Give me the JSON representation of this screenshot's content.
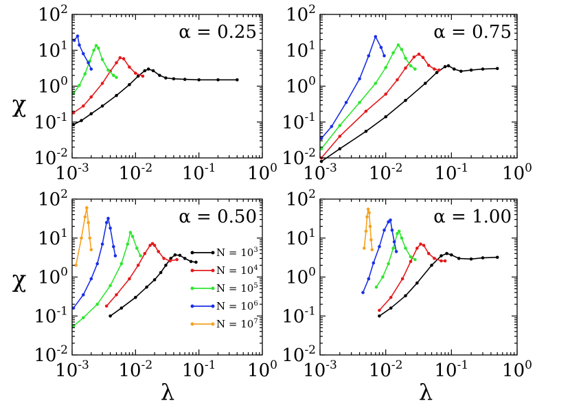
{
  "colors": {
    "black": "#000000",
    "red": "#e4191b",
    "green": "#2ee62e",
    "blue": "#1a2fe6",
    "orange": "#f5a21f"
  },
  "axis": {
    "xlabel": "λ",
    "ylabel": "χ",
    "x_ticks": [
      {
        "base": "10",
        "exp": "-3",
        "value": 0.001
      },
      {
        "base": "10",
        "exp": "-2",
        "value": 0.01
      },
      {
        "base": "10",
        "exp": "-1",
        "value": 0.1
      },
      {
        "base": "10",
        "exp": "0",
        "value": 1
      }
    ],
    "y_ticks": [
      {
        "base": "10",
        "exp": "2",
        "value": 100
      },
      {
        "base": "10",
        "exp": "1",
        "value": 10
      },
      {
        "base": "10",
        "exp": "0",
        "value": 1
      },
      {
        "base": "10",
        "exp": "-1",
        "value": 0.1
      },
      {
        "base": "10",
        "exp": "-2",
        "value": 0.01
      }
    ]
  },
  "chart_data": [
    {
      "type": "line",
      "title": "α = 0.25",
      "xscale": "log",
      "yscale": "log",
      "xlim": [
        0.001,
        1
      ],
      "ylim": [
        0.01,
        100
      ],
      "series": [
        {
          "name": "N = 10^3",
          "color": "black",
          "points": [
            [
              0.00105,
              0.085
            ],
            [
              0.0014,
              0.11
            ],
            [
              0.002,
              0.17
            ],
            [
              0.003,
              0.28
            ],
            [
              0.005,
              0.55
            ],
            [
              0.008,
              1.1
            ],
            [
              0.011,
              1.9
            ],
            [
              0.014,
              2.7
            ],
            [
              0.016,
              3.0
            ],
            [
              0.019,
              2.7
            ],
            [
              0.024,
              2.0
            ],
            [
              0.03,
              1.7
            ],
            [
              0.04,
              1.6
            ],
            [
              0.06,
              1.55
            ],
            [
              0.1,
              1.5
            ],
            [
              0.2,
              1.5
            ],
            [
              0.4,
              1.5
            ]
          ]
        },
        {
          "name": "N = 10^4",
          "color": "red",
          "points": [
            [
              0.00105,
              0.18
            ],
            [
              0.0015,
              0.28
            ],
            [
              0.002,
              0.5
            ],
            [
              0.003,
              1.2
            ],
            [
              0.004,
              2.6
            ],
            [
              0.005,
              4.5
            ],
            [
              0.0057,
              6.2
            ],
            [
              0.0065,
              5.8
            ],
            [
              0.008,
              3.4
            ],
            [
              0.01,
              2.3
            ],
            [
              0.013,
              1.9
            ]
          ]
        },
        {
          "name": "N = 10^5",
          "color": "green",
          "points": [
            [
              0.00105,
              0.62
            ],
            [
              0.0013,
              1.05
            ],
            [
              0.0016,
              2.2
            ],
            [
              0.0019,
              5.0
            ],
            [
              0.0022,
              10.0
            ],
            [
              0.0024,
              13.5
            ],
            [
              0.0026,
              11.5
            ],
            [
              0.003,
              5.5
            ],
            [
              0.0037,
              2.8
            ],
            [
              0.0045,
              2.0
            ],
            [
              0.005,
              1.75
            ]
          ]
        },
        {
          "name": "N = 10^6",
          "color": "blue",
          "points": [
            [
              0.00108,
              19.0
            ],
            [
              0.00122,
              25.0
            ],
            [
              0.0013,
              14.0
            ],
            [
              0.0015,
              8.0
            ],
            [
              0.0018,
              4.5
            ],
            [
              0.002,
              3.0
            ]
          ]
        }
      ]
    },
    {
      "type": "line",
      "title": "α = 0.75",
      "xscale": "log",
      "yscale": "log",
      "xlim": [
        0.001,
        1
      ],
      "ylim": [
        0.01,
        100
      ],
      "series": [
        {
          "name": "N = 10^3",
          "color": "black",
          "points": [
            [
              0.00105,
              0.008
            ],
            [
              0.002,
              0.018
            ],
            [
              0.005,
              0.055
            ],
            [
              0.01,
              0.14
            ],
            [
              0.02,
              0.4
            ],
            [
              0.04,
              1.2
            ],
            [
              0.06,
              2.4
            ],
            [
              0.08,
              3.5
            ],
            [
              0.09,
              3.7
            ],
            [
              0.11,
              3.0
            ],
            [
              0.14,
              2.6
            ],
            [
              0.2,
              2.8
            ],
            [
              0.3,
              3.0
            ],
            [
              0.5,
              3.1
            ]
          ]
        },
        {
          "name": "N = 10^4",
          "color": "red",
          "points": [
            [
              0.00105,
              0.01
            ],
            [
              0.002,
              0.04
            ],
            [
              0.005,
              0.2
            ],
            [
              0.01,
              0.6
            ],
            [
              0.015,
              1.5
            ],
            [
              0.02,
              3.2
            ],
            [
              0.027,
              6.5
            ],
            [
              0.032,
              7.8
            ],
            [
              0.037,
              6.3
            ],
            [
              0.045,
              3.8
            ],
            [
              0.055,
              3.0
            ],
            [
              0.065,
              2.8
            ]
          ]
        },
        {
          "name": "N = 10^5",
          "color": "green",
          "points": [
            [
              0.00105,
              0.018
            ],
            [
              0.002,
              0.08
            ],
            [
              0.004,
              0.35
            ],
            [
              0.007,
              1.2
            ],
            [
              0.01,
              3.3
            ],
            [
              0.013,
              8.5
            ],
            [
              0.0155,
              14.0
            ],
            [
              0.0175,
              10.5
            ],
            [
              0.02,
              6.0
            ],
            [
              0.024,
              3.7
            ],
            [
              0.028,
              3.0
            ]
          ]
        },
        {
          "name": "N = 10^6",
          "color": "blue",
          "points": [
            [
              0.00105,
              0.035
            ],
            [
              0.0015,
              0.075
            ],
            [
              0.0025,
              0.35
            ],
            [
              0.004,
              1.6
            ],
            [
              0.0055,
              7.0
            ],
            [
              0.007,
              24.0
            ],
            [
              0.0085,
              12.0
            ],
            [
              0.0095,
              7.0
            ]
          ]
        }
      ]
    },
    {
      "type": "line",
      "title": "α = 0.50",
      "xscale": "log",
      "yscale": "log",
      "xlim": [
        0.001,
        1
      ],
      "ylim": [
        0.01,
        100
      ],
      "legend": {
        "placement": "center-right",
        "entries": [
          "N = 10^3",
          "N = 10^4",
          "N = 10^5",
          "N = 10^6",
          "N = 10^7"
        ]
      },
      "series": [
        {
          "name": "N = 10^3",
          "color": "black",
          "points": [
            [
              0.004,
              0.1
            ],
            [
              0.006,
              0.16
            ],
            [
              0.01,
              0.3
            ],
            [
              0.015,
              0.55
            ],
            [
              0.02,
              0.85
            ],
            [
              0.025,
              1.3
            ],
            [
              0.03,
              2.0
            ],
            [
              0.036,
              3.0
            ],
            [
              0.042,
              3.7
            ],
            [
              0.05,
              3.6
            ],
            [
              0.06,
              3.0
            ],
            [
              0.075,
              2.5
            ],
            [
              0.09,
              2.4
            ]
          ]
        },
        {
          "name": "N = 10^4",
          "color": "red",
          "points": [
            [
              0.0035,
              0.18
            ],
            [
              0.005,
              0.35
            ],
            [
              0.008,
              0.9
            ],
            [
              0.011,
              2.0
            ],
            [
              0.014,
              4.0
            ],
            [
              0.017,
              6.5
            ],
            [
              0.0185,
              7.2
            ],
            [
              0.02,
              6.5
            ],
            [
              0.023,
              4.5
            ],
            [
              0.028,
              3.0
            ],
            [
              0.035,
              2.6
            ],
            [
              0.045,
              2.8
            ]
          ]
        },
        {
          "name": "N = 10^5",
          "color": "green",
          "points": [
            [
              0.00105,
              0.055
            ],
            [
              0.0015,
              0.09
            ],
            [
              0.0025,
              0.2
            ],
            [
              0.004,
              0.6
            ],
            [
              0.006,
              2.2
            ],
            [
              0.0075,
              7.0
            ],
            [
              0.0083,
              14.0
            ],
            [
              0.009,
              11.0
            ],
            [
              0.0105,
              5.5
            ],
            [
              0.012,
              3.5
            ]
          ]
        },
        {
          "name": "N = 10^6",
          "color": "blue",
          "points": [
            [
              0.00105,
              0.16
            ],
            [
              0.0015,
              0.35
            ],
            [
              0.002,
              0.9
            ],
            [
              0.0025,
              2.2
            ],
            [
              0.003,
              7.0
            ],
            [
              0.0035,
              25.0
            ],
            [
              0.0037,
              32.0
            ],
            [
              0.004,
              18.0
            ],
            [
              0.0045,
              6.0
            ],
            [
              0.0048,
              3.5
            ]
          ]
        },
        {
          "name": "N = 10^7",
          "color": "orange",
          "points": [
            [
              0.00115,
              2.0
            ],
            [
              0.0014,
              10.0
            ],
            [
              0.0016,
              35.0
            ],
            [
              0.0017,
              60.0
            ],
            [
              0.0018,
              25.0
            ],
            [
              0.0019,
              10.0
            ],
            [
              0.002,
              5.0
            ]
          ]
        }
      ]
    },
    {
      "type": "line",
      "title": "α = 1.00",
      "xscale": "log",
      "yscale": "log",
      "xlim": [
        0.001,
        1
      ],
      "ylim": [
        0.01,
        100
      ],
      "series": [
        {
          "name": "N = 10^3",
          "color": "black",
          "points": [
            [
              0.008,
              0.1
            ],
            [
              0.012,
              0.16
            ],
            [
              0.02,
              0.33
            ],
            [
              0.03,
              0.7
            ],
            [
              0.05,
              2.0
            ],
            [
              0.07,
              3.5
            ],
            [
              0.085,
              4.0
            ],
            [
              0.1,
              3.7
            ],
            [
              0.13,
              3.0
            ],
            [
              0.2,
              2.9
            ],
            [
              0.3,
              3.1
            ],
            [
              0.5,
              3.2
            ]
          ]
        },
        {
          "name": "N = 10^4",
          "color": "red",
          "points": [
            [
              0.008,
              0.14
            ],
            [
              0.012,
              0.3
            ],
            [
              0.018,
              0.9
            ],
            [
              0.024,
              2.5
            ],
            [
              0.03,
              5.5
            ],
            [
              0.034,
              7.0
            ],
            [
              0.038,
              6.5
            ],
            [
              0.045,
              4.0
            ],
            [
              0.055,
              3.0
            ],
            [
              0.07,
              2.6
            ],
            [
              0.08,
              2.6
            ]
          ]
        },
        {
          "name": "N = 10^5",
          "color": "green",
          "points": [
            [
              0.0072,
              0.55
            ],
            [
              0.009,
              1.0
            ],
            [
              0.011,
              2.2
            ],
            [
              0.013,
              5.5
            ],
            [
              0.015,
              13.0
            ],
            [
              0.016,
              15.0
            ],
            [
              0.0175,
              10.0
            ],
            [
              0.02,
              5.5
            ],
            [
              0.024,
              3.3
            ],
            [
              0.028,
              2.8
            ]
          ]
        },
        {
          "name": "N = 10^6",
          "color": "blue",
          "points": [
            [
              0.0045,
              0.4
            ],
            [
              0.0055,
              0.9
            ],
            [
              0.0065,
              2.3
            ],
            [
              0.008,
              6.0
            ],
            [
              0.0095,
              16.0
            ],
            [
              0.011,
              26.0
            ],
            [
              0.0118,
              29.0
            ],
            [
              0.0125,
              16.0
            ],
            [
              0.0135,
              8.0
            ],
            [
              0.0145,
              4.5
            ]
          ]
        },
        {
          "name": "N = 10^7",
          "color": "orange",
          "points": [
            [
              0.0047,
              5.5
            ],
            [
              0.005,
              15.0
            ],
            [
              0.0052,
              35.0
            ],
            [
              0.0054,
              55.0
            ],
            [
              0.0056,
              45.0
            ],
            [
              0.0058,
              20.0
            ],
            [
              0.006,
              9.0
            ],
            [
              0.0062,
              5.0
            ]
          ]
        }
      ]
    }
  ]
}
